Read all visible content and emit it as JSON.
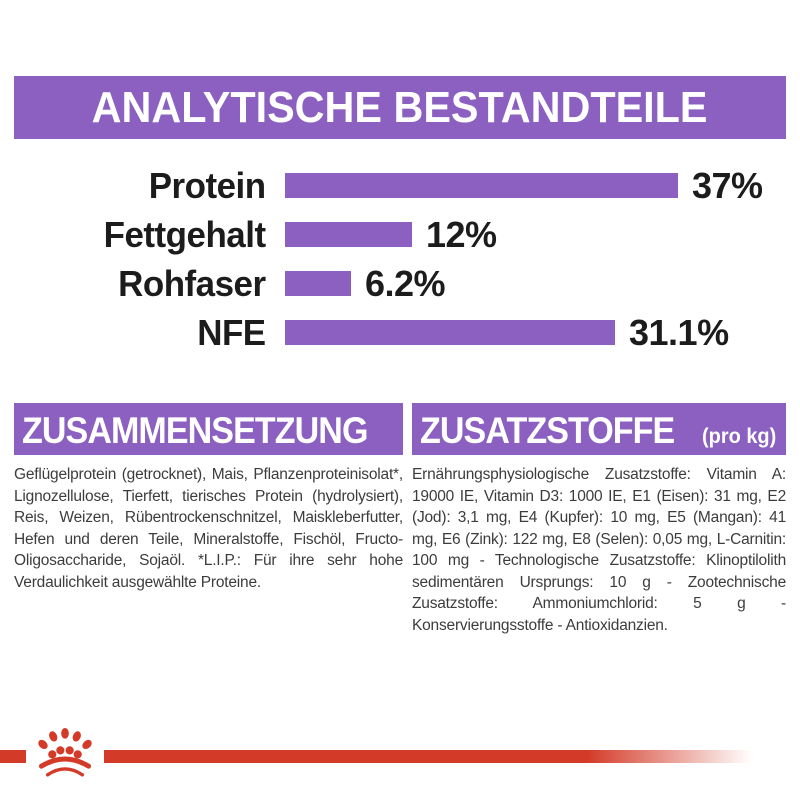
{
  "colors": {
    "accent_purple": "#8B60C0",
    "brand_red": "#D43A28",
    "label_black": "#1c1c1c",
    "body_text": "#3c3c3c"
  },
  "header": {
    "title": "ANALYTISCHE BESTANDTEILE"
  },
  "chart_data": {
    "type": "bar",
    "orientation": "horizontal",
    "title": "ANALYTISCHE BESTANDTEILE",
    "categories": [
      "Protein",
      "Fettgehalt",
      "Rohfaser",
      "NFE"
    ],
    "values": [
      37,
      12,
      6.2,
      31.1
    ],
    "display_values": [
      "37%",
      "12%",
      "6.2%",
      "31.1%"
    ],
    "unit": "%",
    "max_value": 37,
    "bar_color": "#8B60C0",
    "grid": false,
    "legend": false
  },
  "composition": {
    "title": "ZUSAMMENSETZUNG",
    "body": "Geflügelprotein (getrocknet), Mais, Pflanzenproteinisolat*, Lignozellulose, Tierfett, tierisches Protein (hydrolysiert), Reis, Weizen, Rübentrockenschnitzel, Maiskleberfutter, Hefen und deren Teile, Mineralstoffe, Fischöl, Fructo-Oligosaccharide, Sojaöl. *L.I.P.: Für ihre sehr hohe Verdaulichkeit ausgewählte Proteine."
  },
  "additives": {
    "title": "ZUSATZSTOFFE",
    "title_suffix": "(pro kg)",
    "body": "Ernährungsphysiologische Zusatzstoffe: Vitamin A: 19000 IE, Vitamin D3: 1000 IE, E1 (Eisen): 31 mg, E2 (Jod): 3,1 mg, E4 (Kupfer): 10 mg, E5 (Mangan): 41 mg, E6 (Zink): 122 mg, E8 (Selen): 0,05 mg, L-Carnitin: 100 mg - Technologische Zusatzstoffe: Klinoptilolith sedimentären Ursprungs: 10 g - Zootechnische Zusatzstoffe: Ammoniumchlorid: 5 g - Konservierungsstoffe - Antioxidanzien."
  }
}
